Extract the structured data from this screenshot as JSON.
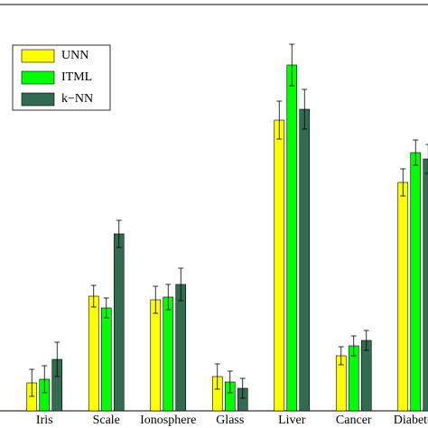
{
  "chart_data": {
    "type": "bar",
    "categories": [
      "Iris",
      "Scale",
      "Ionosphere",
      "Glass",
      "Liver",
      "Cancer",
      "Diabetes"
    ],
    "series": [
      {
        "name": "UNN",
        "color": "#ffff00",
        "values": [
          3.1,
          12.7,
          12.3,
          3.8,
          32.2,
          6.1,
          25.3
        ],
        "errors": [
          1.5,
          1.2,
          1.5,
          1.4,
          2.1,
          1.0,
          1.5
        ]
      },
      {
        "name": "ITML",
        "color": "#00ff00",
        "values": [
          3.5,
          11.4,
          12.6,
          3.2,
          38.3,
          7.2,
          28.6
        ],
        "errors": [
          1.5,
          1.1,
          1.4,
          1.2,
          2.3,
          1.1,
          1.4
        ]
      },
      {
        "name": "k−NN",
        "color": "#336b50",
        "values": [
          5.7,
          19.6,
          14.0,
          2.5,
          33.4,
          7.8,
          27.9
        ],
        "errors": [
          1.9,
          1.5,
          1.8,
          1.1,
          2.2,
          1.1,
          1.6
        ]
      }
    ],
    "ylim": [
      0,
      45
    ],
    "legend": "upper left"
  }
}
